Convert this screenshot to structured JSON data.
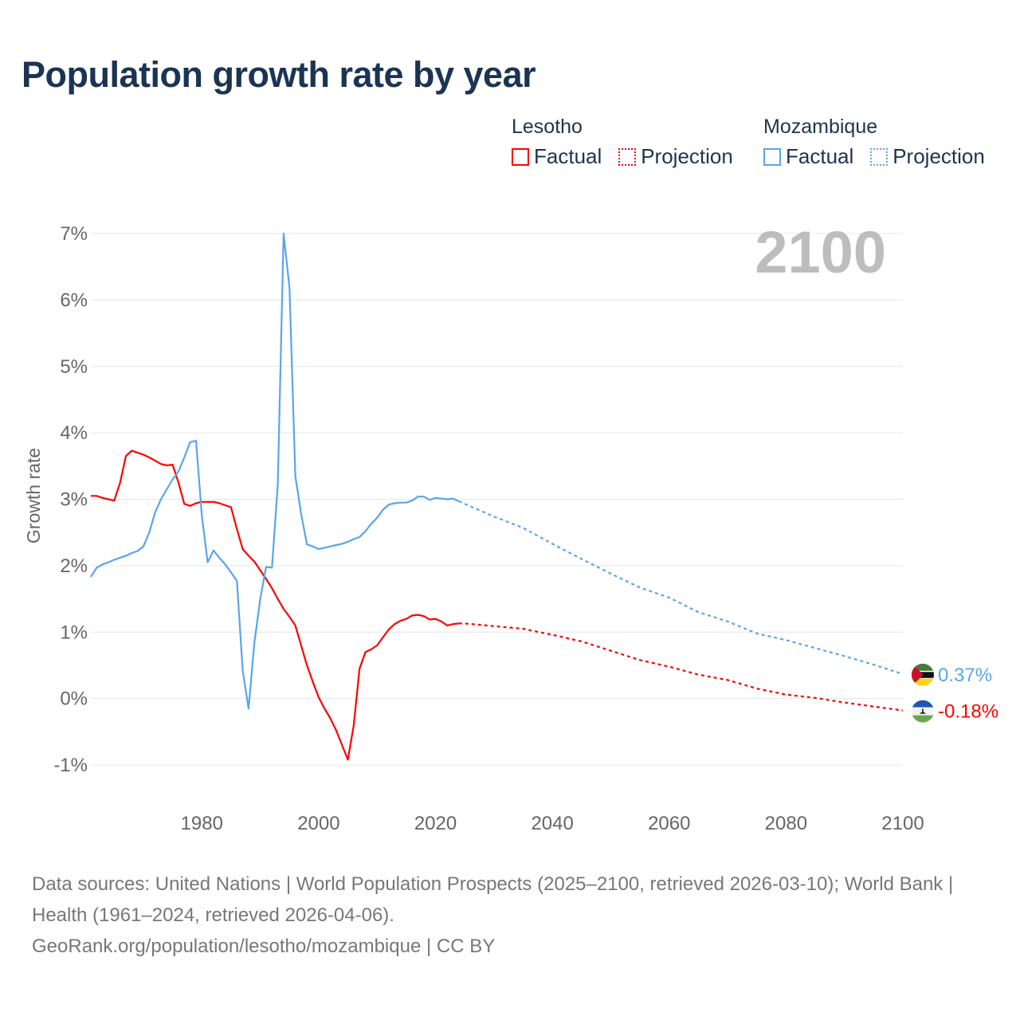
{
  "title": "Population growth rate by year",
  "legend": {
    "groups": [
      {
        "name": "Lesotho",
        "color": "#ff0000",
        "factual": "Factual",
        "projection": "Projection"
      },
      {
        "name": "Mozambique",
        "color": "#5aa5ea",
        "factual": "Factual",
        "projection": "Projection"
      }
    ]
  },
  "source": {
    "line1": "Data sources: United Nations | World Population Prospects (2025–2100, retrieved 2026-03-10); World Bank | Health (1961–2024, retrieved 2026-04-06).",
    "line2": "GeoRank.org/population/lesotho/mozambique | CC BY"
  },
  "chart_data": {
    "type": "line",
    "title": "Population growth rate by year",
    "ylabel": "Growth rate",
    "xlabel": "",
    "current_year_label": "2100",
    "xlim": [
      1961,
      2100
    ],
    "ylim": [
      -1,
      7
    ],
    "x_ticks": [
      1980,
      2000,
      2020,
      2040,
      2060,
      2080,
      2100
    ],
    "x_tick_labels": [
      "1980",
      "2000",
      "2020",
      "2040",
      "2060",
      "2080",
      "2100"
    ],
    "y_ticks": [
      -1,
      0,
      1,
      2,
      3,
      4,
      5,
      6,
      7
    ],
    "y_tick_labels": [
      "-1%",
      "0%",
      "1%",
      "2%",
      "3%",
      "4%",
      "5%",
      "6%",
      "7%"
    ],
    "grid": true,
    "series": [
      {
        "name": "Lesotho",
        "kind": "factual",
        "color": "#ff0000",
        "x": [
          1961,
          1962,
          1963,
          1964,
          1965,
          1966,
          1967,
          1968,
          1969,
          1970,
          1971,
          1972,
          1973,
          1974,
          1975,
          1976,
          1977,
          1978,
          1979,
          1980,
          1981,
          1982,
          1983,
          1984,
          1985,
          1986,
          1987,
          1988,
          1989,
          1990,
          1991,
          1992,
          1993,
          1994,
          1995,
          1996,
          1997,
          1998,
          1999,
          2000,
          2001,
          2002,
          2003,
          2004,
          2005,
          2006,
          2007,
          2008,
          2009,
          2010,
          2011,
          2012,
          2013,
          2014,
          2015,
          2016,
          2017,
          2018,
          2019,
          2020,
          2021,
          2022,
          2023,
          2024
        ],
        "y": [
          3.05,
          3.05,
          3.02,
          3.0,
          2.98,
          3.25,
          3.65,
          3.73,
          3.7,
          3.67,
          3.63,
          3.58,
          3.53,
          3.51,
          3.52,
          3.25,
          2.93,
          2.9,
          2.94,
          2.96,
          2.96,
          2.96,
          2.94,
          2.91,
          2.88,
          2.55,
          2.25,
          2.15,
          2.06,
          1.93,
          1.8,
          1.66,
          1.5,
          1.35,
          1.23,
          1.1,
          0.8,
          0.5,
          0.25,
          0.02,
          -0.15,
          -0.3,
          -0.48,
          -0.7,
          -0.92,
          -0.4,
          0.45,
          0.7,
          0.74,
          0.8,
          0.92,
          1.04,
          1.12,
          1.17,
          1.2,
          1.25,
          1.26,
          1.24,
          1.19,
          1.2,
          1.16,
          1.1,
          1.12,
          1.13
        ]
      },
      {
        "name": "Lesotho",
        "kind": "projection",
        "color": "#ff0000",
        "x": [
          2024,
          2025,
          2030,
          2035,
          2040,
          2045,
          2050,
          2055,
          2060,
          2065,
          2070,
          2075,
          2080,
          2085,
          2090,
          2095,
          2100
        ],
        "y": [
          1.13,
          1.13,
          1.09,
          1.05,
          0.96,
          0.86,
          0.72,
          0.58,
          0.48,
          0.36,
          0.28,
          0.15,
          0.06,
          0.01,
          -0.06,
          -0.12,
          -0.18
        ]
      },
      {
        "name": "Mozambique",
        "kind": "factual",
        "color": "#5aa5ea",
        "x": [
          1961,
          1962,
          1963,
          1964,
          1965,
          1966,
          1967,
          1968,
          1969,
          1970,
          1971,
          1972,
          1973,
          1974,
          1975,
          1976,
          1977,
          1978,
          1979,
          1980,
          1981,
          1982,
          1983,
          1984,
          1985,
          1986,
          1987,
          1988,
          1989,
          1990,
          1991,
          1992,
          1993,
          1994,
          1995,
          1996,
          1997,
          1998,
          1999,
          2000,
          2001,
          2002,
          2003,
          2004,
          2005,
          2006,
          2007,
          2008,
          2009,
          2010,
          2011,
          2012,
          2013,
          2014,
          2015,
          2016,
          2017,
          2018,
          2019,
          2020,
          2021,
          2022,
          2023,
          2024
        ],
        "y": [
          1.83,
          1.97,
          2.02,
          2.05,
          2.09,
          2.12,
          2.15,
          2.19,
          2.22,
          2.29,
          2.5,
          2.8,
          3.0,
          3.15,
          3.3,
          3.42,
          3.63,
          3.86,
          3.88,
          2.75,
          2.05,
          2.23,
          2.12,
          2.02,
          1.9,
          1.77,
          0.42,
          -0.15,
          0.85,
          1.5,
          1.98,
          1.97,
          3.22,
          7.0,
          6.18,
          3.35,
          2.78,
          2.32,
          2.29,
          2.25,
          2.27,
          2.29,
          2.31,
          2.33,
          2.36,
          2.4,
          2.43,
          2.52,
          2.63,
          2.72,
          2.84,
          2.92,
          2.94,
          2.95,
          2.95,
          2.98,
          3.04,
          3.04,
          2.99,
          3.02,
          3.01,
          3.0,
          3.01,
          2.97
        ]
      },
      {
        "name": "Mozambique",
        "kind": "projection",
        "color": "#5aa5ea",
        "x": [
          2024,
          2025,
          2030,
          2035,
          2040,
          2045,
          2050,
          2055,
          2060,
          2065,
          2070,
          2075,
          2080,
          2085,
          2090,
          2095,
          2100
        ],
        "y": [
          2.97,
          2.93,
          2.74,
          2.57,
          2.33,
          2.1,
          1.88,
          1.67,
          1.52,
          1.3,
          1.16,
          0.98,
          0.88,
          0.76,
          0.64,
          0.51,
          0.37
        ]
      }
    ],
    "end_labels": [
      {
        "name": "Mozambique",
        "value": 0.37,
        "text": "0.37%",
        "color": "#5aa5ea",
        "flag": "mozambique-flag"
      },
      {
        "name": "Lesotho",
        "value": -0.18,
        "text": "-0.18%",
        "color": "#ff0000",
        "flag": "lesotho-flag"
      }
    ]
  }
}
